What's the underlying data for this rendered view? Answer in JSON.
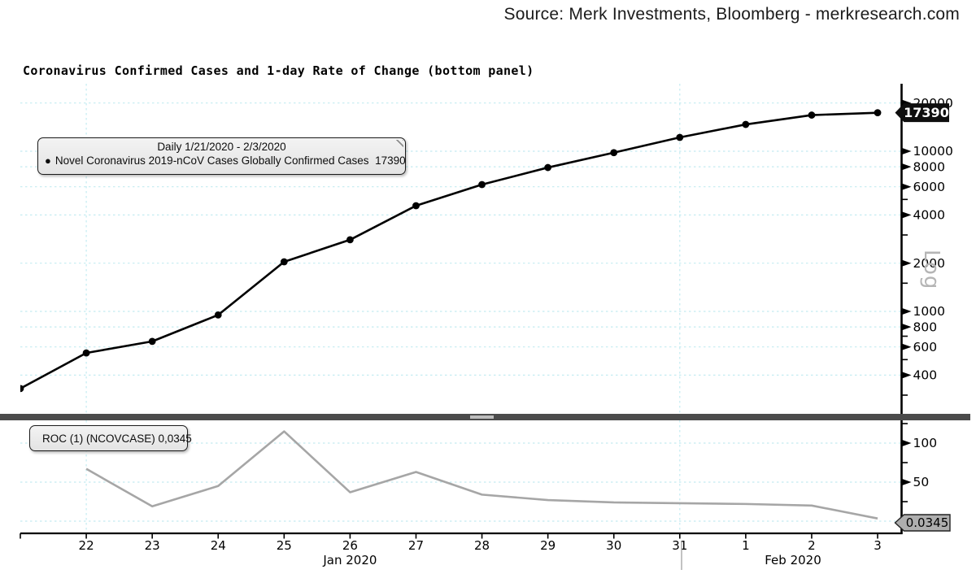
{
  "header": {
    "source_text": "Source: Merk Investments, Bloomberg - merkresearch.com"
  },
  "title": "Coronavirus Confirmed Cases and 1-day Rate of Change (bottom panel)",
  "legend_main": {
    "period": "Daily 1/21/2020 - 2/3/2020",
    "marker": "●",
    "series_label": "Novel Coronavirus 2019-nCoV Cases Globally Confirmed Cases",
    "series_value": "17390"
  },
  "legend_roc": {
    "label": "ROC (1) (NCOVCASE) 0,0345"
  },
  "right_axis": {
    "log_label": "Log",
    "last_value_badge": "17390",
    "roc_badge": "0.0345"
  },
  "x_axis": {
    "day_labels": [
      "22",
      "23",
      "24",
      "25",
      "26",
      "27",
      "28",
      "29",
      "30",
      "31",
      "1",
      "2",
      "3"
    ],
    "month_labels": [
      "Jan 2020",
      "Feb 2020"
    ]
  },
  "chart_data": [
    {
      "type": "line",
      "panel": "top",
      "name": "Novel Coronavirus 2019-nCoV Cases Globally Confirmed Cases",
      "yscale": "log",
      "x": [
        "1/21/2020",
        "1/22/2020",
        "1/23/2020",
        "1/24/2020",
        "1/25/2020",
        "1/26/2020",
        "1/27/2020",
        "1/28/2020",
        "1/29/2020",
        "1/30/2020",
        "1/31/2020",
        "2/1/2020",
        "2/2/2020",
        "2/3/2020"
      ],
      "values": [
        330,
        550,
        650,
        950,
        2040,
        2800,
        4570,
        6190,
        7910,
        9800,
        12200,
        14700,
        16810,
        17390
      ],
      "last_value": 17390,
      "y_ticks": [
        20000,
        10000,
        8000,
        6000,
        4000,
        2000,
        1000,
        800,
        600,
        400
      ],
      "y_minor_ticks": [
        5000,
        3000,
        1500,
        700,
        500,
        300
      ],
      "ylim": [
        290,
        23000
      ],
      "grid": "on",
      "grid_vertical_at": [
        "1/22/2020",
        "1/31/2020"
      ],
      "legend_position": "top-left",
      "marker": "dot"
    },
    {
      "type": "line",
      "panel": "bottom",
      "name": "ROC (1) (NCOVCASE)",
      "yscale": "linear",
      "x": [
        "1/22/2020",
        "1/23/2020",
        "1/24/2020",
        "1/25/2020",
        "1/26/2020",
        "1/27/2020",
        "1/28/2020",
        "1/29/2020",
        "1/30/2020",
        "1/31/2020",
        "2/1/2020",
        "2/2/2020",
        "2/3/2020"
      ],
      "values": [
        67,
        19,
        45,
        115,
        37,
        63,
        34,
        27,
        24,
        23,
        22,
        20,
        3.45
      ],
      "last_value": 0.0345,
      "y_ticks": [
        100,
        50
      ],
      "y_minor_ticks": [
        125,
        75,
        25
      ],
      "ylim": [
        -15,
        130
      ],
      "grid": "on",
      "grid_lines_at": [
        100,
        50,
        0
      ],
      "legend_position": "top-left",
      "marker": "none"
    }
  ],
  "colors": {
    "grid": "#c3ebf1",
    "cases_line": "#000000",
    "roc_line": "#a6a6a6",
    "roc_swatch": "#a3a3a3",
    "axis": "#000000",
    "badge_dark_bg": "#0e0e0e",
    "badge_dark_text": "#ffffff",
    "badge_gray_bg": "#aeaeae",
    "divider": "#4b4b4b",
    "log_label": "#b5b5b5",
    "month_divider": "#9a9a9a"
  }
}
